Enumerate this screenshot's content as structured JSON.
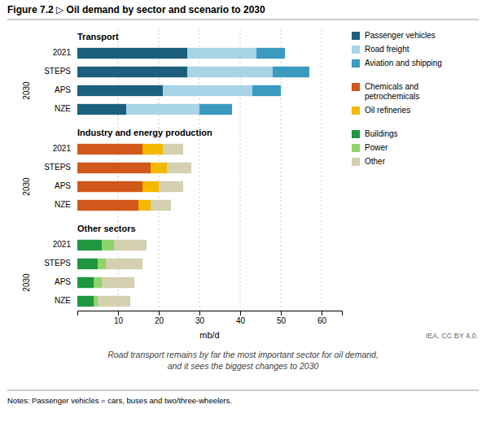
{
  "chart_data": {
    "type": "bar",
    "orientation": "horizontal",
    "stacked": true,
    "grid": true,
    "legend": "right",
    "title": "Figure 7.2 ▷ Oil demand by sector and scenario to 2030",
    "subtitle": "Road transport remains by far the most important sector for oil demand,\nand it sees the biggest changes to 2030",
    "xlabel": "mb/d",
    "xlim": [
      0,
      65
    ],
    "xticks": [
      10,
      20,
      30,
      40,
      50,
      60
    ],
    "annotations": [
      "2030",
      "IEA. CC BY 4.0.",
      "Notes: Passenger vehicles = cars, buses and two/three-wheelers."
    ],
    "panels": [
      {
        "title": "Transport",
        "categories": [
          "2021",
          "STEPS",
          "APS",
          "NZE"
        ],
        "series": [
          {
            "name": "Passenger vehicles",
            "color": "#1c5f7e",
            "values": [
              27,
              27,
              21,
              12
            ]
          },
          {
            "name": "Road freight",
            "color": "#a8d4e8",
            "values": [
              17,
              21,
              22,
              18
            ]
          },
          {
            "name": "Aviation and shipping",
            "color": "#3a9bbf",
            "values": [
              7,
              9,
              7,
              8
            ]
          }
        ]
      },
      {
        "title": "Industry and energy production",
        "categories": [
          "2021",
          "STEPS",
          "APS",
          "NZE"
        ],
        "series": [
          {
            "name": "Chemicals and\npetrochemicals",
            "color": "#d2571a",
            "values": [
              16,
              18,
              16,
              15
            ]
          },
          {
            "name": "Oil refineries",
            "color": "#f5b800",
            "values": [
              5,
              4,
              4,
              3
            ]
          },
          {
            "name": "Other",
            "color": "#d4d0b0",
            "values": [
              5,
              6,
              6,
              5
            ]
          }
        ]
      },
      {
        "title": "Other sectors",
        "categories": [
          "2021",
          "STEPS",
          "APS",
          "NZE"
        ],
        "series": [
          {
            "name": "Buildings",
            "color": "#1f9640",
            "values": [
              6,
              5,
              4,
              4
            ]
          },
          {
            "name": "Power",
            "color": "#8ed46a",
            "values": [
              3,
              2,
              2,
              1
            ]
          },
          {
            "name": "Other",
            "color": "#d4d0b0",
            "values": [
              8,
              9,
              8,
              8
            ]
          }
        ]
      }
    ]
  }
}
